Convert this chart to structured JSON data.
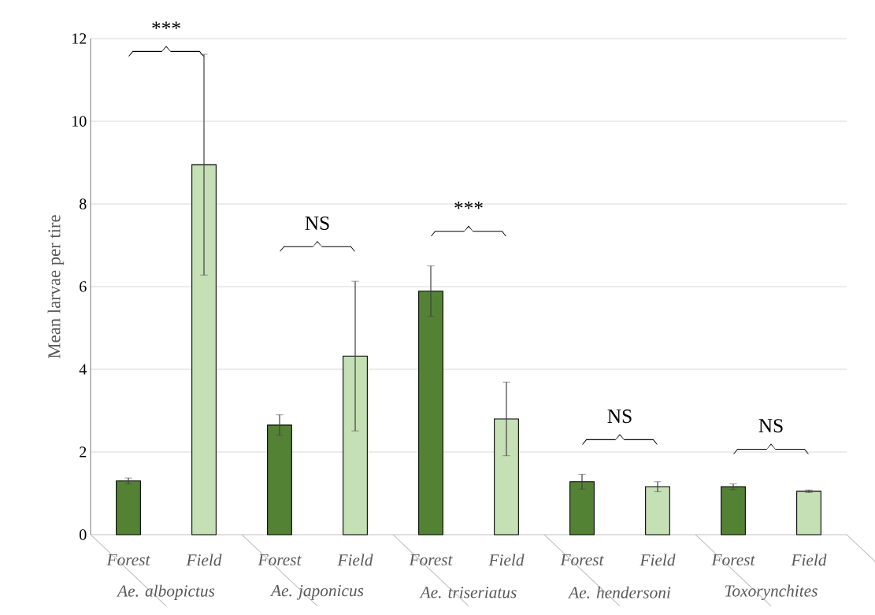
{
  "chart_data": {
    "type": "bar",
    "ylabel": "Mean larvae per tire",
    "categories": [
      "Ae. albopictus",
      "Ae. japonicus",
      "Ae. triseriatus",
      "Ae. hendersoni",
      "Toxorynchites"
    ],
    "series": [
      {
        "name": "Forest",
        "color": "#548235",
        "values": [
          1.3,
          2.65,
          5.89,
          1.28,
          1.16
        ],
        "errors": [
          0.07,
          0.25,
          0.61,
          0.18,
          0.07
        ]
      },
      {
        "name": "Field",
        "color": "#c5e0b4",
        "values": [
          8.95,
          4.32,
          2.8,
          1.16,
          1.05
        ],
        "errors": [
          2.67,
          1.81,
          0.89,
          0.12,
          0.03
        ]
      }
    ],
    "ylim": [
      0,
      12
    ],
    "yticks": [
      0,
      2,
      4,
      6,
      8,
      10,
      12
    ],
    "grid": "y",
    "annotations": [
      "***",
      "NS",
      "***",
      "NS",
      "NS"
    ]
  }
}
